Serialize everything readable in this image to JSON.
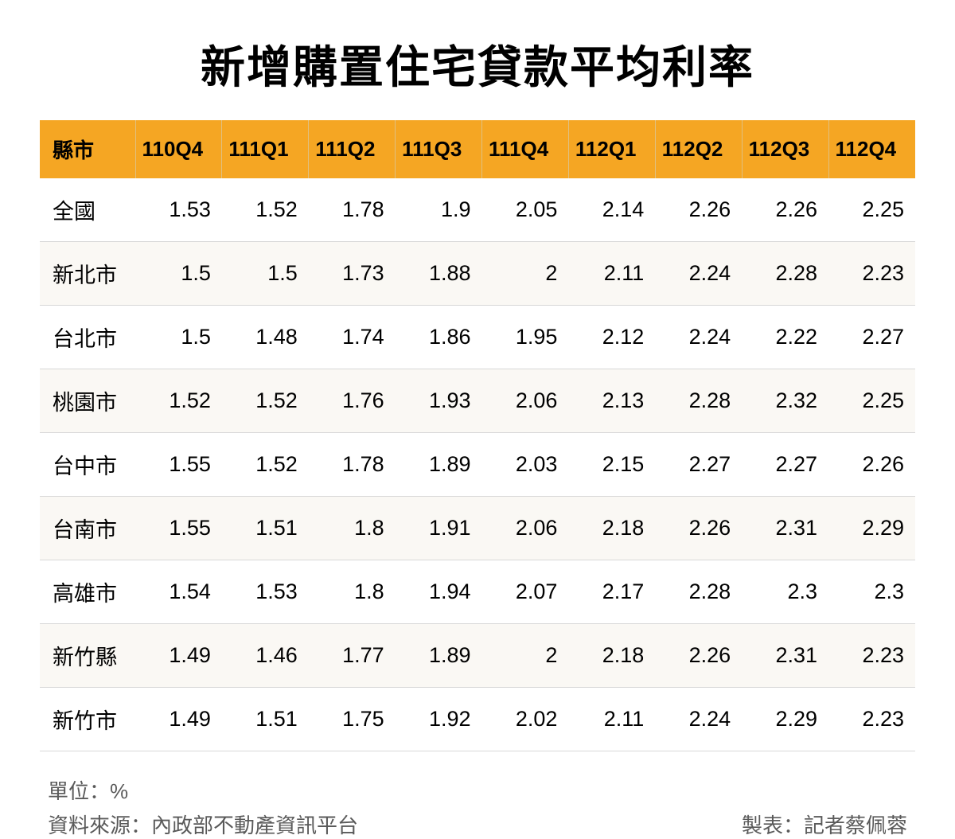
{
  "title": "新增購置住宅貸款平均利率",
  "table": {
    "type": "table",
    "header_bg_color": "#f5a623",
    "header_text_color": "#000000",
    "row_alt_bg_color": "#faf8f4",
    "row_bg_color": "#ffffff",
    "border_color": "#d8d8d8",
    "title_fontsize": 56,
    "header_fontsize": 26,
    "cell_fontsize": 27,
    "columns": [
      "縣市",
      "110Q4",
      "111Q1",
      "111Q2",
      "111Q3",
      "111Q4",
      "112Q1",
      "112Q2",
      "112Q3",
      "112Q4"
    ],
    "rows": [
      [
        "全國",
        "1.53",
        "1.52",
        "1.78",
        "1.9",
        "2.05",
        "2.14",
        "2.26",
        "2.26",
        "2.25"
      ],
      [
        "新北市",
        "1.5",
        "1.5",
        "1.73",
        "1.88",
        "2",
        "2.11",
        "2.24",
        "2.28",
        "2.23"
      ],
      [
        "台北市",
        "1.5",
        "1.48",
        "1.74",
        "1.86",
        "1.95",
        "2.12",
        "2.24",
        "2.22",
        "2.27"
      ],
      [
        "桃園市",
        "1.52",
        "1.52",
        "1.76",
        "1.93",
        "2.06",
        "2.13",
        "2.28",
        "2.32",
        "2.25"
      ],
      [
        "台中市",
        "1.55",
        "1.52",
        "1.78",
        "1.89",
        "2.03",
        "2.15",
        "2.27",
        "2.27",
        "2.26"
      ],
      [
        "台南市",
        "1.55",
        "1.51",
        "1.8",
        "1.91",
        "2.06",
        "2.18",
        "2.26",
        "2.31",
        "2.29"
      ],
      [
        "高雄市",
        "1.54",
        "1.53",
        "1.8",
        "1.94",
        "2.07",
        "2.17",
        "2.28",
        "2.3",
        "2.3"
      ],
      [
        "新竹縣",
        "1.49",
        "1.46",
        "1.77",
        "1.89",
        "2",
        "2.18",
        "2.26",
        "2.31",
        "2.23"
      ],
      [
        "新竹市",
        "1.49",
        "1.51",
        "1.75",
        "1.92",
        "2.02",
        "2.11",
        "2.24",
        "2.29",
        "2.23"
      ]
    ]
  },
  "footer": {
    "unit_label": "單位：%",
    "source_label": "資料來源：內政部不動產資訊平台",
    "author_label": "製表：記者蔡佩蓉",
    "text_color": "#5a5a5a",
    "fontsize": 26
  }
}
